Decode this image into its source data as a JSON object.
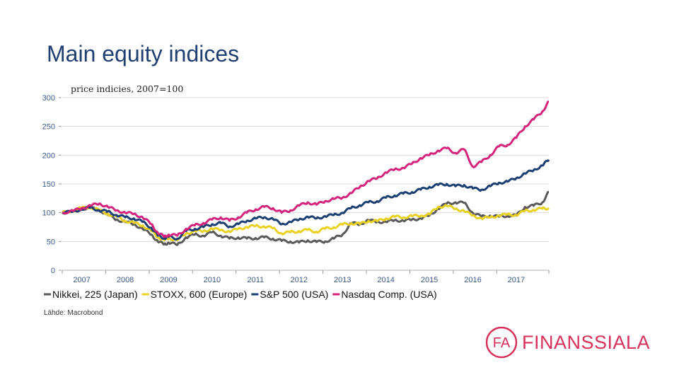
{
  "page": {
    "title": "Main equity indices",
    "source": "Lähde: Macrobond",
    "logo_text": "FINANSSIALA",
    "logo_mark": "FA"
  },
  "chart_data": {
    "type": "line",
    "subtitle": "price indicies, 2007=100",
    "xlabel": "",
    "ylabel": "",
    "x_tick_labels": [
      "2007",
      "2008",
      "2009",
      "2010",
      "2011",
      "2012",
      "2013",
      "2014",
      "2015",
      "2016",
      "2017"
    ],
    "y_ticks": [
      0,
      50,
      100,
      150,
      200,
      250,
      300
    ],
    "xlim": [
      2006.55,
      2017.75
    ],
    "ylim": [
      0,
      300
    ],
    "legend_position": "bottom",
    "series": [
      {
        "name": "Nikkei, 225 (Japan)",
        "color": "#5a5a5a",
        "x": [
          2006.55,
          2006.8,
          2007.0,
          2007.2,
          2007.4,
          2007.6,
          2007.8,
          2008.0,
          2008.2,
          2008.4,
          2008.6,
          2008.75,
          2008.9,
          2009.0,
          2009.2,
          2009.4,
          2009.6,
          2009.8,
          2010.0,
          2010.2,
          2010.4,
          2010.6,
          2010.8,
          2011.0,
          2011.2,
          2011.4,
          2011.6,
          2011.8,
          2012.0,
          2012.2,
          2012.4,
          2012.6,
          2012.8,
          2013.0,
          2013.2,
          2013.4,
          2013.6,
          2013.8,
          2014.0,
          2014.2,
          2014.4,
          2014.6,
          2014.8,
          2015.0,
          2015.2,
          2015.4,
          2015.6,
          2015.8,
          2016.0,
          2016.2,
          2016.4,
          2016.6,
          2016.8,
          2017.0,
          2017.2,
          2017.4,
          2017.6,
          2017.75
        ],
        "y": [
          100,
          102,
          107,
          108,
          105,
          96,
          88,
          84,
          80,
          72,
          62,
          50,
          45,
          48,
          44,
          57,
          62,
          60,
          66,
          60,
          55,
          57,
          55,
          56,
          57,
          55,
          51,
          50,
          48,
          52,
          49,
          50,
          55,
          62,
          82,
          80,
          87,
          84,
          84,
          87,
          86,
          88,
          90,
          95,
          107,
          116,
          118,
          117,
          100,
          93,
          95,
          93,
          95,
          95,
          110,
          112,
          118,
          136
        ]
      },
      {
        "name": "STOXX, 600 (Europe)",
        "color": "#e8d21f",
        "x": [
          2006.55,
          2006.8,
          2007.0,
          2007.2,
          2007.4,
          2007.6,
          2007.8,
          2008.0,
          2008.2,
          2008.4,
          2008.6,
          2008.75,
          2008.9,
          2009.0,
          2009.2,
          2009.4,
          2009.6,
          2009.8,
          2010.0,
          2010.2,
          2010.4,
          2010.6,
          2010.8,
          2011.0,
          2011.2,
          2011.4,
          2011.6,
          2011.8,
          2012.0,
          2012.2,
          2012.4,
          2012.6,
          2012.8,
          2013.0,
          2013.2,
          2013.4,
          2013.6,
          2013.8,
          2014.0,
          2014.2,
          2014.4,
          2014.6,
          2014.8,
          2015.0,
          2015.2,
          2015.4,
          2015.6,
          2015.8,
          2016.0,
          2016.2,
          2016.4,
          2016.6,
          2016.8,
          2017.0,
          2017.2,
          2017.4,
          2017.6,
          2017.75
        ],
        "y": [
          100,
          104,
          108,
          110,
          104,
          98,
          93,
          86,
          82,
          78,
          68,
          58,
          52,
          56,
          52,
          64,
          68,
          68,
          72,
          70,
          67,
          72,
          75,
          77,
          76,
          73,
          64,
          66,
          68,
          70,
          67,
          72,
          75,
          79,
          82,
          80,
          86,
          85,
          90,
          93,
          92,
          94,
          95,
          97,
          110,
          112,
          107,
          103,
          95,
          90,
          92,
          95,
          97,
          96,
          103,
          105,
          107,
          108
        ]
      },
      {
        "name": "S&P 500 (USA)",
        "color": "#1b3f73",
        "x": [
          2006.55,
          2006.8,
          2007.0,
          2007.2,
          2007.4,
          2007.6,
          2007.8,
          2008.0,
          2008.2,
          2008.4,
          2008.6,
          2008.75,
          2008.9,
          2009.0,
          2009.2,
          2009.4,
          2009.6,
          2009.8,
          2010.0,
          2010.2,
          2010.4,
          2010.6,
          2010.8,
          2011.0,
          2011.2,
          2011.4,
          2011.6,
          2011.8,
          2012.0,
          2012.2,
          2012.4,
          2012.6,
          2012.8,
          2013.0,
          2013.2,
          2013.4,
          2013.6,
          2013.8,
          2014.0,
          2014.2,
          2014.4,
          2014.6,
          2014.8,
          2015.0,
          2015.2,
          2015.4,
          2015.6,
          2015.8,
          2016.0,
          2016.2,
          2016.4,
          2016.6,
          2016.8,
          2017.0,
          2017.2,
          2017.4,
          2017.6,
          2017.75
        ],
        "y": [
          100,
          102,
          106,
          109,
          104,
          102,
          96,
          92,
          90,
          84,
          74,
          60,
          56,
          58,
          55,
          68,
          72,
          75,
          80,
          82,
          76,
          80,
          86,
          90,
          92,
          89,
          80,
          84,
          88,
          93,
          90,
          94,
          96,
          100,
          108,
          113,
          118,
          120,
          126,
          130,
          133,
          136,
          140,
          145,
          148,
          150,
          146,
          148,
          142,
          140,
          146,
          152,
          154,
          160,
          168,
          174,
          182,
          192
        ]
      },
      {
        "name": "Nasdaq Comp. (USA)",
        "color": "#d4237c",
        "x": [
          2006.55,
          2006.8,
          2007.0,
          2007.2,
          2007.4,
          2007.6,
          2007.8,
          2008.0,
          2008.2,
          2008.4,
          2008.6,
          2008.75,
          2008.9,
          2009.0,
          2009.2,
          2009.4,
          2009.6,
          2009.8,
          2010.0,
          2010.2,
          2010.4,
          2010.6,
          2010.8,
          2011.0,
          2011.2,
          2011.4,
          2011.6,
          2011.8,
          2012.0,
          2012.2,
          2012.4,
          2012.6,
          2012.8,
          2013.0,
          2013.2,
          2013.4,
          2013.6,
          2013.8,
          2014.0,
          2014.2,
          2014.4,
          2014.6,
          2014.8,
          2015.0,
          2015.2,
          2015.4,
          2015.6,
          2015.8,
          2016.0,
          2016.2,
          2016.4,
          2016.6,
          2016.8,
          2017.0,
          2017.2,
          2017.4,
          2017.6,
          2017.75
        ],
        "y": [
          100,
          103,
          108,
          112,
          116,
          110,
          104,
          100,
          98,
          92,
          80,
          65,
          58,
          62,
          60,
          72,
          78,
          82,
          88,
          92,
          86,
          92,
          100,
          106,
          110,
          108,
          100,
          104,
          112,
          118,
          114,
          120,
          124,
          126,
          134,
          145,
          155,
          160,
          170,
          175,
          178,
          185,
          195,
          200,
          208,
          212,
          204,
          210,
          180,
          188,
          200,
          215,
          218,
          230,
          250,
          262,
          276,
          293
        ]
      }
    ]
  }
}
